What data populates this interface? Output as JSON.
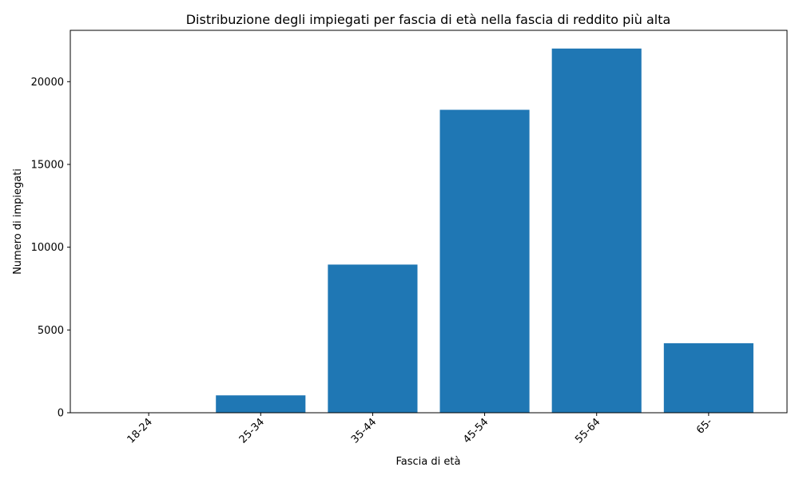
{
  "chart_data": {
    "type": "bar",
    "title": "Distribuzione degli impiegati per fascia di età nella fascia di reddito più alta",
    "xlabel": "Fascia di età",
    "ylabel": "Numero di impiegati",
    "categories": [
      "18-24",
      "25-34",
      "35-44",
      "45-54",
      "55-64",
      "65-"
    ],
    "values": [
      0,
      1050,
      8950,
      18300,
      22000,
      4200
    ],
    "ylim": [
      0,
      23100
    ],
    "yticks": [
      0,
      5000,
      10000,
      15000,
      20000
    ],
    "bar_color": "#1f77b4",
    "grid": false,
    "legend": "none"
  }
}
